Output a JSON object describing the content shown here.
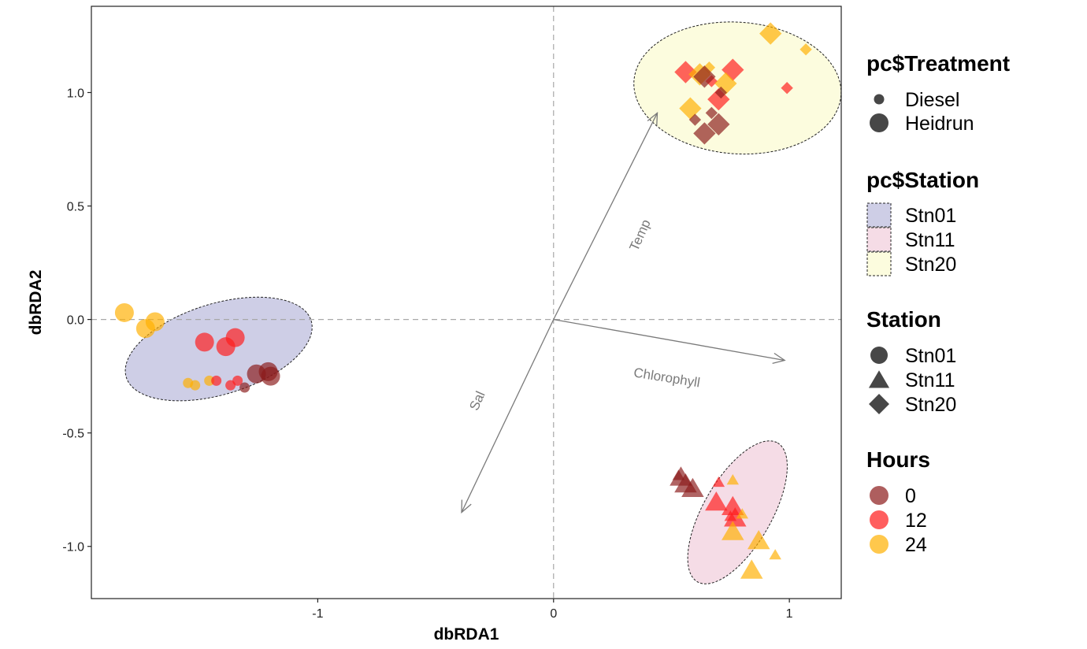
{
  "chart_data": {
    "type": "scatter",
    "title": "",
    "xlabel": "dbRDA1",
    "ylabel": "dbRDA2",
    "xlim": [
      -1.96,
      1.22
    ],
    "ylim": [
      -1.23,
      1.38
    ],
    "x_ticks": [
      {
        "value": -1,
        "label": "-1"
      },
      {
        "value": 0,
        "label": "0"
      },
      {
        "value": 1,
        "label": "1"
      }
    ],
    "y_ticks": [
      {
        "value": 1.0,
        "label": "1.0"
      },
      {
        "value": 0.5,
        "label": "0.5"
      },
      {
        "value": 0.0,
        "label": "0.0"
      },
      {
        "value": -0.5,
        "label": "-0.5"
      },
      {
        "value": -1.0,
        "label": "-1.0"
      }
    ],
    "grid": false,
    "reference_lines": {
      "x": 0,
      "y": 0
    },
    "colors": {
      "0": "#8b1a1a",
      "12": "#ff1a1a",
      "24": "#ffb000"
    },
    "ellipse_fills": {
      "Stn01": "#b0b0d6",
      "Stn11": "#efc6d6",
      "Stn20": "#fafaca"
    },
    "ellipses": [
      {
        "station": "Stn01",
        "cx": -1.42,
        "cy": -0.13,
        "rx": 0.41,
        "ry": 0.2,
        "angle_deg": -17
      },
      {
        "station": "Stn11",
        "cx": 0.78,
        "cy": -0.85,
        "rx": 0.34,
        "ry": 0.15,
        "angle_deg": -60
      },
      {
        "station": "Stn20",
        "cx": 0.78,
        "cy": 1.02,
        "rx": 0.44,
        "ry": 0.29,
        "angle_deg": 4
      }
    ],
    "vectors": [
      {
        "label": "Temp",
        "x": 0.44,
        "y": 0.91,
        "label_x": 0.37,
        "label_y": 0.37,
        "label_angle": -66
      },
      {
        "label": "Chlorophyll",
        "x": 0.98,
        "y": -0.18,
        "label_x": 0.48,
        "label_y": -0.26,
        "label_angle": 9
      },
      {
        "label": "Sal",
        "x": -0.39,
        "y": -0.85,
        "label_x": -0.32,
        "label_y": -0.36,
        "label_angle": -66
      }
    ],
    "points": [
      {
        "station": "Stn01",
        "hours": "24",
        "treatment": "Heidrun",
        "x": -1.82,
        "y": 0.03
      },
      {
        "station": "Stn01",
        "hours": "24",
        "treatment": "Heidrun",
        "x": -1.73,
        "y": -0.04
      },
      {
        "station": "Stn01",
        "hours": "24",
        "treatment": "Heidrun",
        "x": -1.69,
        "y": -0.01
      },
      {
        "station": "Stn01",
        "hours": "12",
        "treatment": "Heidrun",
        "x": -1.48,
        "y": -0.1
      },
      {
        "station": "Stn01",
        "hours": "12",
        "treatment": "Heidrun",
        "x": -1.39,
        "y": -0.12
      },
      {
        "station": "Stn01",
        "hours": "12",
        "treatment": "Heidrun",
        "x": -1.35,
        "y": -0.08
      },
      {
        "station": "Stn01",
        "hours": "0",
        "treatment": "Heidrun",
        "x": -1.26,
        "y": -0.24
      },
      {
        "station": "Stn01",
        "hours": "0",
        "treatment": "Heidrun",
        "x": -1.21,
        "y": -0.23
      },
      {
        "station": "Stn01",
        "hours": "0",
        "treatment": "Heidrun",
        "x": -1.2,
        "y": -0.25
      },
      {
        "station": "Stn01",
        "hours": "24",
        "treatment": "Diesel",
        "x": -1.55,
        "y": -0.28
      },
      {
        "station": "Stn01",
        "hours": "24",
        "treatment": "Diesel",
        "x": -1.52,
        "y": -0.29
      },
      {
        "station": "Stn01",
        "hours": "24",
        "treatment": "Diesel",
        "x": -1.46,
        "y": -0.27
      },
      {
        "station": "Stn01",
        "hours": "12",
        "treatment": "Diesel",
        "x": -1.43,
        "y": -0.27
      },
      {
        "station": "Stn01",
        "hours": "12",
        "treatment": "Diesel",
        "x": -1.37,
        "y": -0.29
      },
      {
        "station": "Stn01",
        "hours": "12",
        "treatment": "Diesel",
        "x": -1.34,
        "y": -0.27
      },
      {
        "station": "Stn01",
        "hours": "0",
        "treatment": "Diesel",
        "x": -1.31,
        "y": -0.3
      },
      {
        "station": "Stn11",
        "hours": "0",
        "treatment": "Heidrun",
        "x": 0.54,
        "y": -0.7
      },
      {
        "station": "Stn11",
        "hours": "0",
        "treatment": "Heidrun",
        "x": 0.56,
        "y": -0.73
      },
      {
        "station": "Stn11",
        "hours": "0",
        "treatment": "Heidrun",
        "x": 0.59,
        "y": -0.75
      },
      {
        "station": "Stn11",
        "hours": "0",
        "treatment": "Diesel",
        "x": 0.53,
        "y": -0.69
      },
      {
        "station": "Stn11",
        "hours": "12",
        "treatment": "Heidrun",
        "x": 0.69,
        "y": -0.81
      },
      {
        "station": "Stn11",
        "hours": "12",
        "treatment": "Heidrun",
        "x": 0.76,
        "y": -0.83
      },
      {
        "station": "Stn11",
        "hours": "12",
        "treatment": "Heidrun",
        "x": 0.77,
        "y": -0.88
      },
      {
        "station": "Stn11",
        "hours": "12",
        "treatment": "Diesel",
        "x": 0.7,
        "y": -0.72
      },
      {
        "station": "Stn11",
        "hours": "12",
        "treatment": "Diesel",
        "x": 0.75,
        "y": -0.87
      },
      {
        "station": "Stn11",
        "hours": "24",
        "treatment": "Heidrun",
        "x": 0.76,
        "y": -0.94
      },
      {
        "station": "Stn11",
        "hours": "24",
        "treatment": "Heidrun",
        "x": 0.87,
        "y": -0.98
      },
      {
        "station": "Stn11",
        "hours": "24",
        "treatment": "Heidrun",
        "x": 0.84,
        "y": -1.11
      },
      {
        "station": "Stn11",
        "hours": "24",
        "treatment": "Diesel",
        "x": 0.76,
        "y": -0.71
      },
      {
        "station": "Stn11",
        "hours": "24",
        "treatment": "Diesel",
        "x": 0.8,
        "y": -0.86
      },
      {
        "station": "Stn11",
        "hours": "24",
        "treatment": "Diesel",
        "x": 0.94,
        "y": -1.04
      },
      {
        "station": "Stn20",
        "hours": "24",
        "treatment": "Heidrun",
        "x": 0.92,
        "y": 1.26
      },
      {
        "station": "Stn20",
        "hours": "24",
        "treatment": "Diesel",
        "x": 1.07,
        "y": 1.19
      },
      {
        "station": "Stn20",
        "hours": "12",
        "treatment": "Heidrun",
        "x": 0.56,
        "y": 1.09
      },
      {
        "station": "Stn20",
        "hours": "12",
        "treatment": "Heidrun",
        "x": 0.76,
        "y": 1.1
      },
      {
        "station": "Stn20",
        "hours": "12",
        "treatment": "Heidrun",
        "x": 0.7,
        "y": 0.97
      },
      {
        "station": "Stn20",
        "hours": "12",
        "treatment": "Diesel",
        "x": 0.67,
        "y": 1.05
      },
      {
        "station": "Stn20",
        "hours": "12",
        "treatment": "Diesel",
        "x": 0.99,
        "y": 1.02
      },
      {
        "station": "Stn20",
        "hours": "24",
        "treatment": "Heidrun",
        "x": 0.62,
        "y": 1.08
      },
      {
        "station": "Stn20",
        "hours": "24",
        "treatment": "Heidrun",
        "x": 0.73,
        "y": 1.04
      },
      {
        "station": "Stn20",
        "hours": "24",
        "treatment": "Heidrun",
        "x": 0.58,
        "y": 0.93
      },
      {
        "station": "Stn20",
        "hours": "24",
        "treatment": "Diesel",
        "x": 0.66,
        "y": 1.11
      },
      {
        "station": "Stn20",
        "hours": "0",
        "treatment": "Heidrun",
        "x": 0.64,
        "y": 1.07
      },
      {
        "station": "Stn20",
        "hours": "0",
        "treatment": "Heidrun",
        "x": 0.7,
        "y": 0.86
      },
      {
        "station": "Stn20",
        "hours": "0",
        "treatment": "Heidrun",
        "x": 0.64,
        "y": 0.82
      },
      {
        "station": "Stn20",
        "hours": "0",
        "treatment": "Diesel",
        "x": 0.6,
        "y": 0.88
      },
      {
        "station": "Stn20",
        "hours": "0",
        "treatment": "Diesel",
        "x": 0.67,
        "y": 0.91
      },
      {
        "station": "Stn20",
        "hours": "0",
        "treatment": "Diesel",
        "x": 0.71,
        "y": 1.0
      }
    ],
    "legends": [
      {
        "title": "pc$Treatment",
        "kind": "treatment",
        "items": [
          {
            "label": "Diesel",
            "key": "Diesel"
          },
          {
            "label": "Heidrun",
            "key": "Heidrun"
          }
        ]
      },
      {
        "title": "pc$Station",
        "kind": "ellipse",
        "items": [
          {
            "label": "Stn01",
            "key": "Stn01"
          },
          {
            "label": "Stn11",
            "key": "Stn11"
          },
          {
            "label": "Stn20",
            "key": "Stn20"
          }
        ]
      },
      {
        "title": "Station",
        "kind": "shape",
        "items": [
          {
            "label": "Stn01",
            "key": "Stn01"
          },
          {
            "label": "Stn11",
            "key": "Stn11"
          },
          {
            "label": "Stn20",
            "key": "Stn20"
          }
        ]
      },
      {
        "title": "Hours",
        "kind": "color",
        "items": [
          {
            "label": "0",
            "key": "0"
          },
          {
            "label": "12",
            "key": "12"
          },
          {
            "label": "24",
            "key": "24"
          }
        ]
      }
    ]
  }
}
